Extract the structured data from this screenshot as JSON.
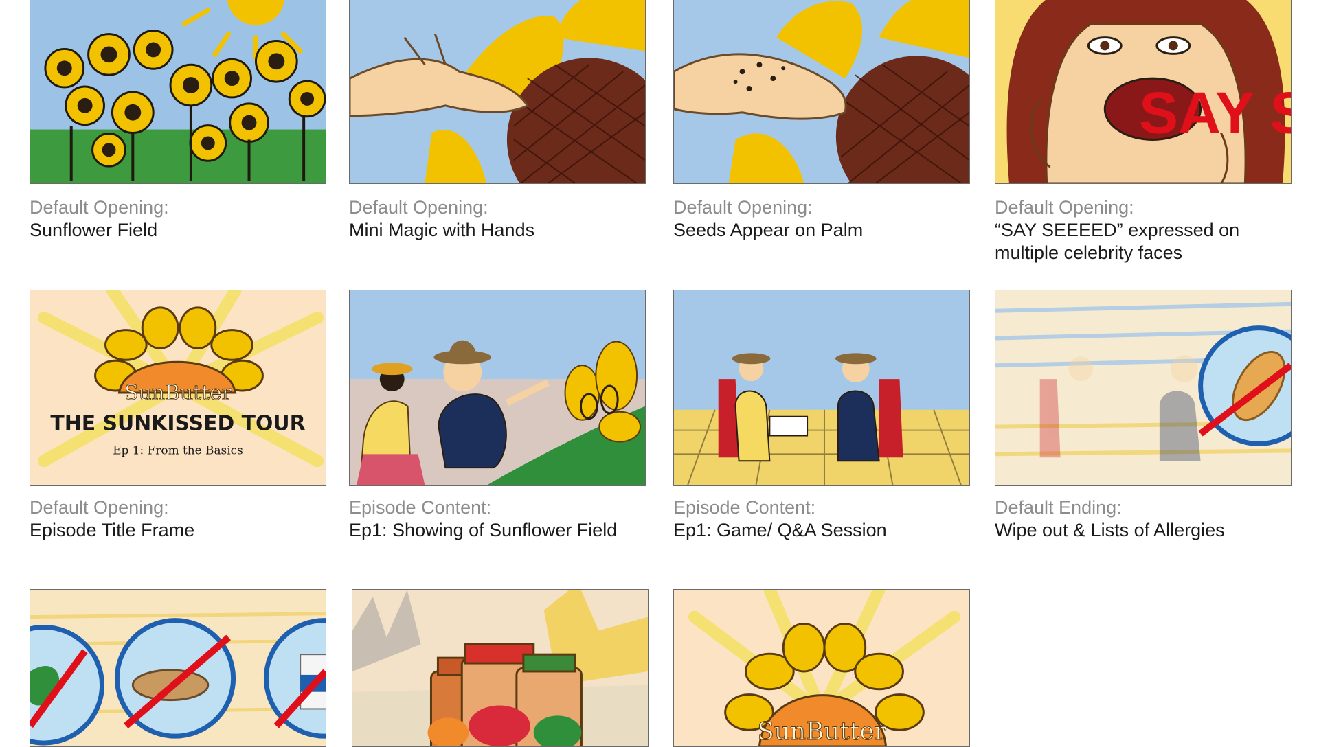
{
  "storyboard": {
    "panels": [
      {
        "category": "Default Opening:",
        "title": "Sunflower Field"
      },
      {
        "category": "Default Opening:",
        "title": "Mini Magic with Hands"
      },
      {
        "category": "Default Opening:",
        "title": "Seeds Appear on Palm"
      },
      {
        "category": "Default Opening:",
        "title": "“SAY SEEEED” expressed on multiple celebrity faces",
        "drawn_text": "SAY S"
      },
      {
        "category": "Default Opening:",
        "title": "Episode Title Frame",
        "drawn_text": [
          "SunButter",
          "THE SUNKISSED TOUR",
          "Ep 1: From the Basics"
        ]
      },
      {
        "category": "Episode Content:",
        "title": "Ep1: Showing of Sunflower Field"
      },
      {
        "category": "Episode Content:",
        "title": "Ep1: Game/ Q&A Session"
      },
      {
        "category": "Default Ending:",
        "title": "Wipe out & Lists of Allergies"
      },
      {
        "category": "",
        "title": ""
      },
      {
        "category": "",
        "title": ""
      },
      {
        "category": "",
        "title": "",
        "drawn_text": "SunButter"
      }
    ]
  },
  "colors": {
    "sky": "#8fb8e0",
    "sunflower": "#f2c200",
    "seed_brown": "#6b2a1a",
    "grass": "#2f8f3a",
    "red_text": "#e0101a",
    "caption_gray": "#8c8c8c",
    "caption_black": "#1a1a1a"
  }
}
